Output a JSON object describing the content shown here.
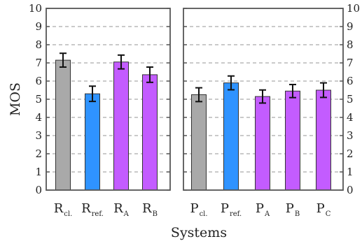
{
  "chart_data": {
    "type": "bar",
    "ylabel": "MOS",
    "xlabel": "Systems",
    "ylim": [
      0,
      10
    ],
    "yticks": [
      0,
      1,
      2,
      3,
      4,
      5,
      6,
      7,
      8,
      9,
      10
    ],
    "grid": "horizontal dashed",
    "colors": {
      "gray": "#a9a9a9",
      "blue": "#2f93ff",
      "purple": "#c35cff"
    },
    "panels": [
      {
        "categories": [
          {
            "main": "R",
            "sub": "cl.",
            "value": 7.15,
            "err": 0.38,
            "color": "gray"
          },
          {
            "main": "R",
            "sub": "ref.",
            "value": 5.3,
            "err": 0.42,
            "color": "blue"
          },
          {
            "main": "R",
            "sub": "A",
            "value": 7.05,
            "err": 0.38,
            "color": "purple"
          },
          {
            "main": "R",
            "sub": "B",
            "value": 6.35,
            "err": 0.42,
            "color": "purple"
          }
        ]
      },
      {
        "categories": [
          {
            "main": "P",
            "sub": "cl.",
            "value": 5.25,
            "err": 0.38,
            "color": "gray"
          },
          {
            "main": "P",
            "sub": "ref.",
            "value": 5.9,
            "err": 0.38,
            "color": "blue"
          },
          {
            "main": "P",
            "sub": "A",
            "value": 5.15,
            "err": 0.36,
            "color": "purple"
          },
          {
            "main": "P",
            "sub": "B",
            "value": 5.45,
            "err": 0.36,
            "color": "purple"
          },
          {
            "main": "P",
            "sub": "C",
            "value": 5.5,
            "err": 0.4,
            "color": "purple"
          }
        ]
      }
    ]
  }
}
